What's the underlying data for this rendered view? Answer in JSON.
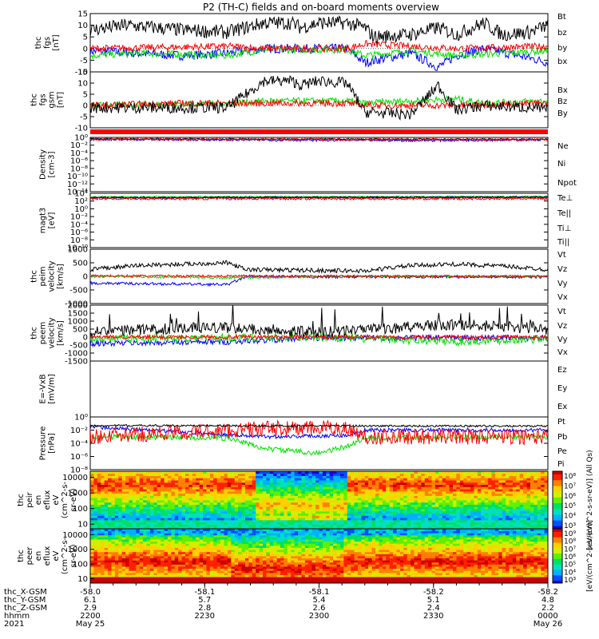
{
  "title": "P2 (TH-C) fields and on-board moments overview",
  "colors": {
    "black": "#000000",
    "red": "#ff0000",
    "green": "#00e000",
    "blue": "#0000ff",
    "frame": "#000000"
  },
  "chart_data": [
    {
      "id": "fgs-gse",
      "type": "line",
      "ylabel": [
        "thc",
        "fgs",
        "[nT]"
      ],
      "ylim": [
        -10,
        15
      ],
      "yticks": [
        15,
        10,
        5,
        0,
        -5,
        -10
      ],
      "series": [
        {
          "name": "Bt",
          "color": "#000000"
        },
        {
          "name": "bz",
          "color": "#ff0000"
        },
        {
          "name": "by",
          "color": "#00e000"
        },
        {
          "name": "bx",
          "color": "#0000ff"
        }
      ],
      "profile": {
        "Bt": [
          [
            0,
            8
          ],
          [
            0.08,
            10
          ],
          [
            0.2,
            8
          ],
          [
            0.3,
            7
          ],
          [
            0.38,
            11
          ],
          [
            0.44,
            11
          ],
          [
            0.46,
            9
          ],
          [
            0.5,
            11
          ],
          [
            0.56,
            11
          ],
          [
            0.6,
            9
          ],
          [
            0.62,
            5
          ],
          [
            0.7,
            6
          ],
          [
            0.76,
            9
          ],
          [
            0.8,
            6
          ],
          [
            0.86,
            11
          ],
          [
            0.9,
            6
          ],
          [
            0.96,
            7
          ],
          [
            1,
            10
          ]
        ],
        "bz": [
          [
            0,
            0
          ],
          [
            0.3,
            1
          ],
          [
            0.38,
            0
          ],
          [
            0.56,
            0
          ],
          [
            0.6,
            2
          ],
          [
            0.8,
            0
          ],
          [
            1,
            1
          ]
        ],
        "by": [
          [
            0,
            -3
          ],
          [
            0.1,
            -2
          ],
          [
            0.3,
            -3
          ],
          [
            0.38,
            -0.5
          ],
          [
            0.56,
            -0.5
          ],
          [
            0.6,
            -3
          ],
          [
            0.7,
            -1
          ],
          [
            0.8,
            -3
          ],
          [
            1,
            -1
          ]
        ],
        "bx": [
          [
            0,
            -1
          ],
          [
            0.2,
            -3
          ],
          [
            0.3,
            -2
          ],
          [
            0.38,
            0
          ],
          [
            0.56,
            0
          ],
          [
            0.6,
            -6
          ],
          [
            0.7,
            -2
          ],
          [
            0.76,
            -8
          ],
          [
            0.8,
            -3
          ],
          [
            0.86,
            0
          ],
          [
            0.96,
            -4
          ],
          [
            1,
            -6
          ]
        ]
      },
      "noise": {
        "Bt": 3,
        "bz": 1.5,
        "by": 1.5,
        "bx": 2
      }
    },
    {
      "id": "fgs-gsm",
      "type": "line",
      "ylabel": [
        "thc",
        "fgs",
        "gsm",
        "[nT]"
      ],
      "ylim": [
        -10,
        15
      ],
      "yticks": [
        15,
        10,
        5,
        0,
        -5,
        -10
      ],
      "series": [
        {
          "name": "Bx",
          "color": "#000000"
        },
        {
          "name": "Bz",
          "color": "#ff0000"
        },
        {
          "name": "By",
          "color": "#00e000"
        }
      ],
      "profile": {
        "Bx": [
          [
            0,
            -1
          ],
          [
            0.3,
            -1
          ],
          [
            0.38,
            11
          ],
          [
            0.44,
            11
          ],
          [
            0.46,
            9
          ],
          [
            0.5,
            11
          ],
          [
            0.56,
            10
          ],
          [
            0.6,
            -3
          ],
          [
            0.7,
            -4
          ],
          [
            0.76,
            9
          ],
          [
            0.8,
            -2
          ],
          [
            0.86,
            0
          ],
          [
            0.96,
            -1
          ],
          [
            1,
            -2
          ]
        ],
        "Bz": [
          [
            0,
            0
          ],
          [
            0.2,
            1
          ],
          [
            0.38,
            1
          ],
          [
            0.56,
            1
          ],
          [
            0.6,
            0
          ],
          [
            0.8,
            0
          ],
          [
            1,
            1
          ]
        ],
        "By": [
          [
            0,
            0
          ],
          [
            0.3,
            1
          ],
          [
            0.38,
            2
          ],
          [
            0.56,
            2
          ],
          [
            0.6,
            1
          ],
          [
            0.8,
            3
          ],
          [
            0.86,
            1
          ],
          [
            1,
            2
          ]
        ]
      },
      "noise": {
        "Bx": 2.5,
        "Bz": 1.5,
        "By": 1.5
      }
    },
    {
      "id": "density",
      "type": "line",
      "log": true,
      "ylabel": [
        "Density",
        "[cm-3]"
      ],
      "ylim": [
        -14,
        0
      ],
      "yticks": [
        0,
        -2,
        -4,
        -6,
        -8,
        -10,
        -12,
        -14
      ],
      "series": [
        {
          "name": "Ne",
          "color": "#ff0000"
        },
        {
          "name": "Ni",
          "color": "#000000"
        },
        {
          "name": "Npot",
          "color": "#0000ff"
        }
      ],
      "profile": {
        "Ne": [
          [
            0,
            -0.5
          ],
          [
            1,
            -0.6
          ]
        ],
        "Ni": [
          [
            0,
            -0.4
          ],
          [
            1,
            -0.5
          ]
        ],
        "Npot": [
          [
            0,
            -0.5
          ],
          [
            0.7,
            -0.8
          ],
          [
            1,
            -0.6
          ]
        ]
      },
      "noise": {
        "Ne": 0.3,
        "Ni": 0.2,
        "Npot": 0.3
      }
    },
    {
      "id": "temp",
      "type": "line",
      "log": true,
      "ylabel": [
        "magt3",
        "[eV]"
      ],
      "ylim": [
        -10,
        4
      ],
      "yticks": [
        4,
        2,
        0,
        -2,
        -4,
        -6,
        -8,
        -10
      ],
      "series": [
        {
          "name": "Te⊥",
          "color": "#ff0000"
        },
        {
          "name": "Te||",
          "color": "#000000"
        },
        {
          "name": "Ti⊥",
          "color": "#0000ff"
        },
        {
          "name": "Ti||",
          "color": "#00e000"
        }
      ],
      "profile": {
        "Te⊥": [
          [
            0,
            2.6
          ],
          [
            1,
            2.6
          ]
        ],
        "Te||": [
          [
            0,
            2.9
          ],
          [
            1,
            3
          ]
        ],
        "Ti⊥": [
          [
            0,
            2.8
          ],
          [
            1,
            3
          ]
        ],
        "Ti||": [
          [
            0,
            3.1
          ],
          [
            1,
            3.2
          ]
        ]
      },
      "noise": {
        "Te⊥": 0.3,
        "Te||": 0.2,
        "Ti⊥": 0.2,
        "Ti||": 0.15
      }
    },
    {
      "id": "peim",
      "type": "line",
      "ylabel": [
        "thc",
        "peim",
        "velocity",
        "[km/s]"
      ],
      "ylim": [
        -1000,
        1000
      ],
      "yticks": [
        1000,
        500,
        0,
        -500,
        -1000
      ],
      "series": [
        {
          "name": "Vt",
          "color": "#000000"
        },
        {
          "name": "Vz",
          "color": "#ff0000"
        },
        {
          "name": "Vy",
          "color": "#00e000"
        },
        {
          "name": "Vx",
          "color": "#0000ff"
        }
      ],
      "profile": {
        "Vt": [
          [
            0,
            250
          ],
          [
            0.1,
            400
          ],
          [
            0.3,
            500
          ],
          [
            0.34,
            250
          ],
          [
            0.6,
            200
          ],
          [
            0.7,
            400
          ],
          [
            0.8,
            450
          ],
          [
            0.9,
            380
          ],
          [
            1,
            250
          ]
        ],
        "Vz": [
          [
            0,
            20
          ],
          [
            1,
            0
          ]
        ],
        "Vy": [
          [
            0,
            0
          ],
          [
            0.3,
            -50
          ],
          [
            0.6,
            0
          ],
          [
            1,
            0
          ]
        ],
        "Vx": [
          [
            0,
            -250
          ],
          [
            0.3,
            -300
          ],
          [
            0.34,
            -20
          ],
          [
            1,
            -20
          ]
        ]
      },
      "noise": {
        "Vt": 80,
        "Vz": 40,
        "Vy": 40,
        "Vx": 50
      }
    },
    {
      "id": "peem",
      "type": "line",
      "ylabel": [
        "thc",
        "peem",
        "velocity",
        "[km/s]"
      ],
      "ylim": [
        -1500,
        2000
      ],
      "yticks": [
        2000,
        1500,
        1000,
        500,
        0,
        -500,
        -1000,
        -1500
      ],
      "series": [
        {
          "name": "Vt",
          "color": "#000000"
        },
        {
          "name": "Vz",
          "color": "#ff0000"
        },
        {
          "name": "Vy",
          "color": "#00e000"
        },
        {
          "name": "Vx",
          "color": "#0000ff"
        }
      ],
      "profile": {
        "Vt": [
          [
            0,
            400
          ],
          [
            0.3,
            600
          ],
          [
            0.5,
            300
          ],
          [
            0.6,
            450
          ],
          [
            0.8,
            800
          ],
          [
            1,
            500
          ]
        ],
        "Vz": [
          [
            0,
            0
          ],
          [
            1,
            0
          ]
        ],
        "Vy": [
          [
            0,
            -100
          ],
          [
            0.5,
            0
          ],
          [
            0.8,
            -300
          ],
          [
            1,
            -100
          ]
        ],
        "Vx": [
          [
            0,
            -400
          ],
          [
            0.3,
            -300
          ],
          [
            0.5,
            -50
          ],
          [
            1,
            -50
          ]
        ]
      },
      "noise": {
        "Vt": 350,
        "Vz": 120,
        "Vy": 250,
        "Vx": 180
      }
    },
    {
      "id": "efield",
      "type": "line",
      "ylabel": [
        "E=-VxB",
        "[mV/m]"
      ],
      "ylim": [
        0,
        1
      ],
      "yticks": [],
      "series": [
        {
          "name": "Ez",
          "color": "#ff0000"
        },
        {
          "name": "Ey",
          "color": "#00e000"
        },
        {
          "name": "Ex",
          "color": "#0000ff"
        }
      ],
      "profile": {},
      "noise": {}
    },
    {
      "id": "pressure",
      "type": "line",
      "log": true,
      "ylabel": [
        "Pressure",
        "[nPa]"
      ],
      "ylim": [
        -8,
        0
      ],
      "yticks": [
        0,
        -2,
        -4,
        -6,
        -8
      ],
      "series": [
        {
          "name": "Pt",
          "color": "#000000"
        },
        {
          "name": "Pb",
          "color": "#ff0000"
        },
        {
          "name": "Pe",
          "color": "#00e000"
        },
        {
          "name": "Pi",
          "color": "#0000ff"
        }
      ],
      "profile": {
        "Pt": [
          [
            0,
            -1.3
          ],
          [
            1,
            -1.4
          ]
        ],
        "Pb": [
          [
            0,
            -3
          ],
          [
            0.38,
            -1.8
          ],
          [
            0.56,
            -1.7
          ],
          [
            0.6,
            -3
          ],
          [
            1,
            -3
          ]
        ],
        "Pe": [
          [
            0,
            -3
          ],
          [
            0.3,
            -3.2
          ],
          [
            0.38,
            -4.8
          ],
          [
            0.5,
            -5.5
          ],
          [
            0.56,
            -4.5
          ],
          [
            0.6,
            -3.2
          ],
          [
            1,
            -3
          ]
        ],
        "Pi": [
          [
            0,
            -1.5
          ],
          [
            0.38,
            -3
          ],
          [
            0.56,
            -2.8
          ],
          [
            0.6,
            -2
          ],
          [
            1,
            -2
          ]
        ]
      },
      "noise": {
        "Pt": 0.15,
        "Pb": 1.2,
        "Pe": 0.4,
        "Pi": 0.3
      }
    },
    {
      "id": "peir",
      "type": "heatmap",
      "ylabel": [
        "thc",
        "peir",
        "en",
        "eflux",
        "eV",
        "(cm^2-s-",
        "sr-eV)"
      ],
      "ylim": [
        5,
        25000
      ],
      "yticks": [
        10000,
        1000,
        100,
        10
      ],
      "cbar": {
        "ticks": [
          8,
          7,
          6,
          5,
          4,
          3
        ],
        "label": "[eV/(cm^2-s-sr-eV)] (All Qs)"
      }
    },
    {
      "id": "peer",
      "type": "heatmap",
      "ylabel": [
        "thc",
        "peer",
        "en",
        "eflux",
        "eV",
        "(cm^2-s-",
        "sr-eV)"
      ],
      "ylim": [
        5,
        25000
      ],
      "yticks": [
        10000,
        1000,
        100,
        10
      ],
      "cbar": {
        "ticks": [
          9,
          8,
          7,
          6,
          5,
          4,
          3
        ],
        "label": "[eV/(cm^2-s-sr-eV)]"
      }
    }
  ],
  "xaxis": {
    "rows": [
      {
        "label": "thc_X-GSM",
        "values": [
          "-58.0",
          "-58.1",
          "-58.1",
          "-58.2",
          "-58.2"
        ]
      },
      {
        "label": "thc_Y-GSM",
        "values": [
          "6.1",
          "5.7",
          "5.4",
          "5.1",
          "4.8"
        ]
      },
      {
        "label": "thc_Z-GSM",
        "values": [
          "2.9",
          "2.8",
          "2.6",
          "2.4",
          "2.2"
        ]
      },
      {
        "label": "hhmm",
        "values": [
          "2200",
          "2230",
          "2300",
          "2330",
          "0000"
        ]
      }
    ],
    "year": "2021",
    "date_left": "May 25",
    "date_right": "May 26"
  }
}
